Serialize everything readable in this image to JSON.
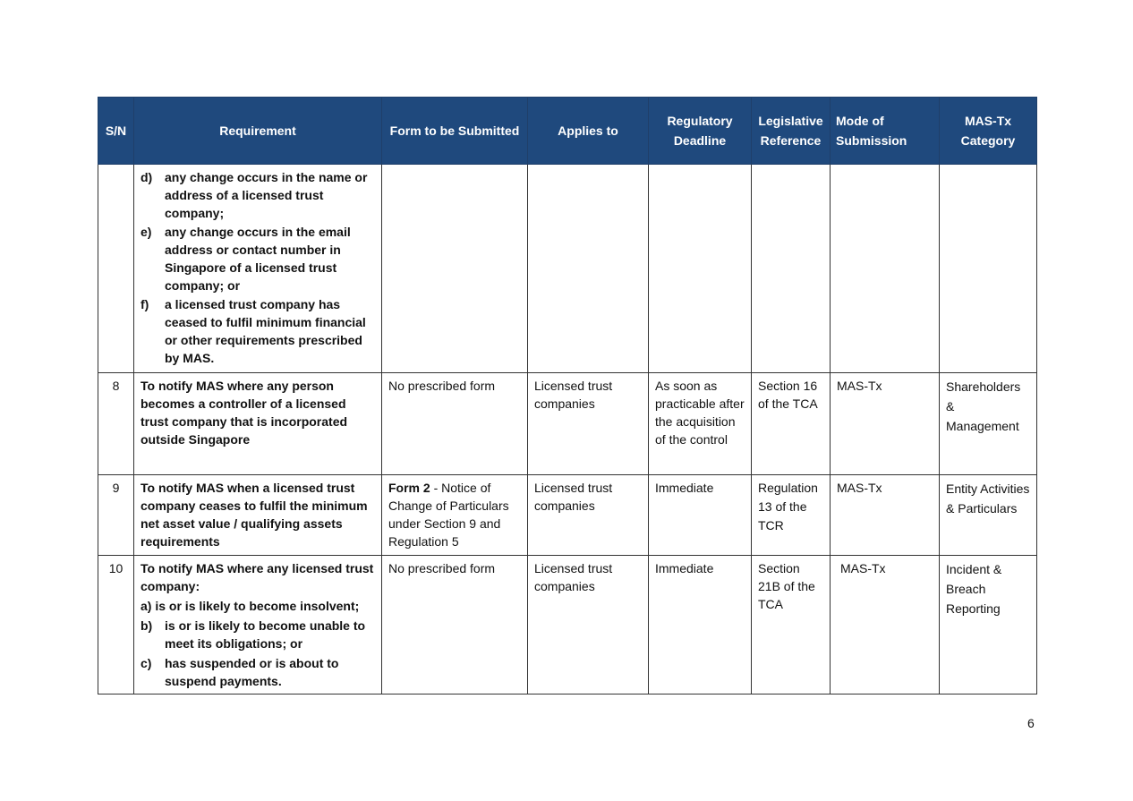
{
  "header": [
    "S/N",
    "Requirement",
    "Form to be Submitted",
    "Applies to",
    "Regulatory Deadline",
    "Legislative Reference",
    "Mode of Submission",
    "MAS-Tx Category"
  ],
  "continuation": {
    "items": [
      {
        "label": "d)",
        "text": "any change occurs in the name or address of a licensed trust company;"
      },
      {
        "label": "e)",
        "text": "any change occurs in the email address or contact number in Singapore of a licensed trust company; or"
      },
      {
        "label": "f)",
        "text": "a licensed trust company has ceased to fulfil minimum financial or other requirements prescribed by MAS."
      }
    ]
  },
  "rows": [
    {
      "sn": "8",
      "requirement": "To notify MAS where any person becomes a controller of a licensed trust company that is incorporated outside Singapore",
      "form_bold": "",
      "form": "No prescribed form",
      "applies": "Licensed trust companies",
      "deadline": "As soon as practicable after the acquisition of the control",
      "reference": "Section 16 of the TCA",
      "mode": "MAS-Tx",
      "category": "Shareholders & Management"
    },
    {
      "sn": "9",
      "requirement": "To notify MAS when a licensed trust company ceases to fulfil the minimum net asset value / qualifying assets requirements",
      "form_bold": "Form 2",
      "form": " - Notice of Change of Particulars under Section 9 and Regulation 5",
      "applies": "Licensed trust companies",
      "deadline": "Immediate",
      "reference": "Regulation 13 of the TCR",
      "mode": "MAS-Tx",
      "category": "Entity Activities & Particulars"
    },
    {
      "sn": "10",
      "requirement": "To notify MAS where any licensed trust company:",
      "items": [
        {
          "label": "a)",
          "text": "is or is likely to become insolvent;"
        },
        {
          "label": "b)",
          "text": "is or is likely to become unable to meet its obligations; or"
        },
        {
          "label": "c)",
          "text": "has suspended or is about to suspend payments."
        }
      ],
      "form_bold": "",
      "form": "No prescribed form",
      "applies": "Licensed trust companies",
      "deadline": "Immediate",
      "reference": "Section 21B of the TCA",
      "mode": "MAS-Tx",
      "category": "Incident & Breach Reporting"
    }
  ],
  "page_number": "6"
}
